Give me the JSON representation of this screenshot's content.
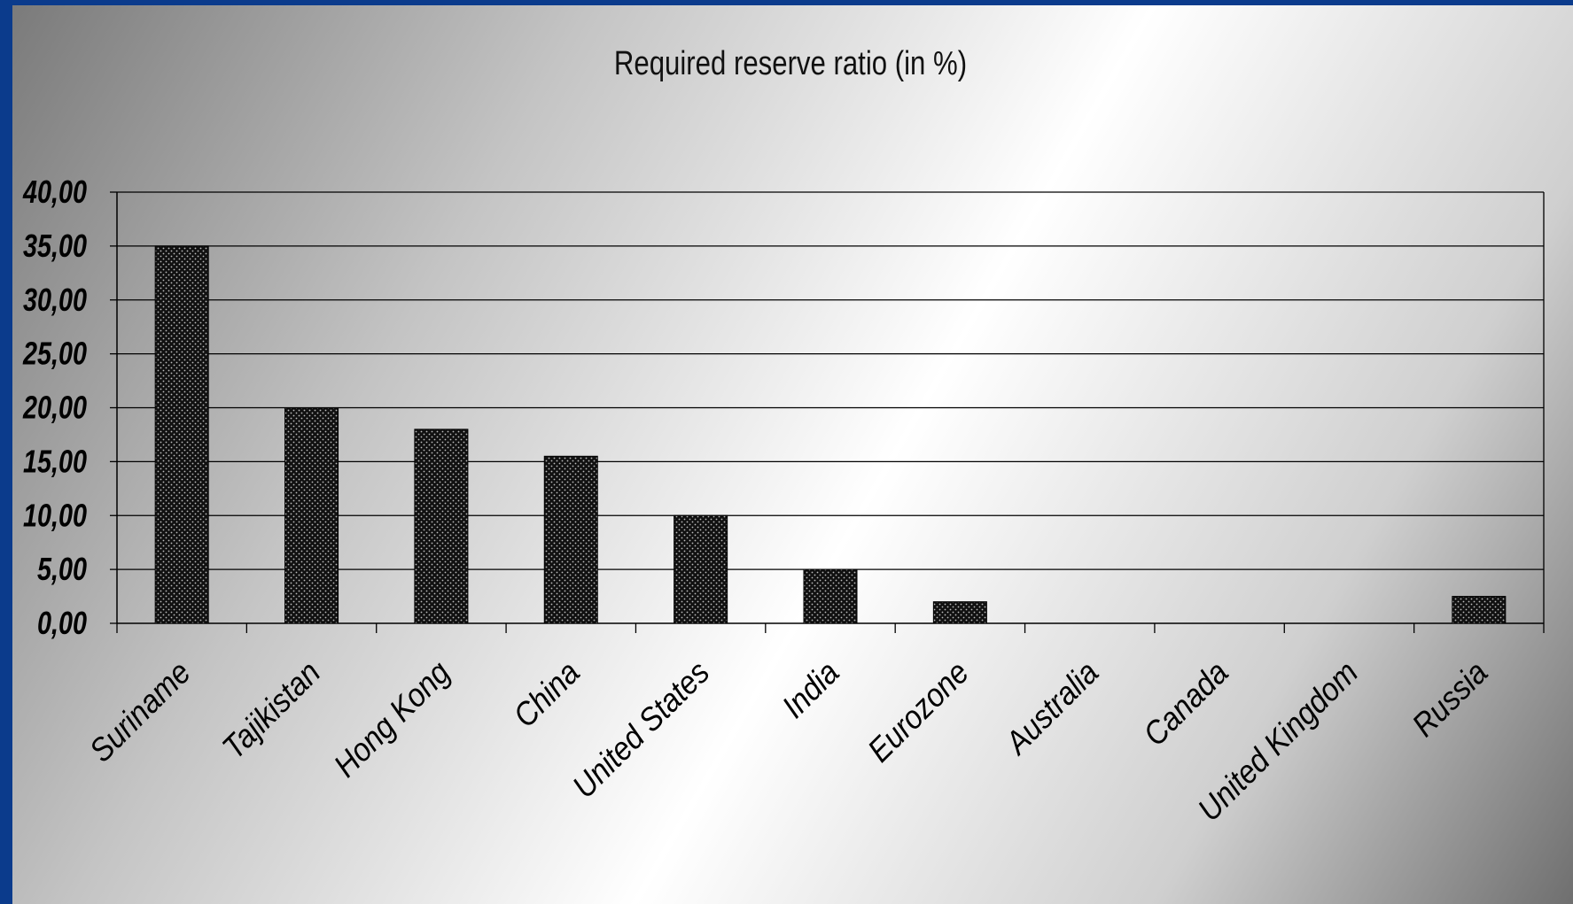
{
  "chart_data": {
    "type": "bar",
    "title": "Required reserve ratio (in %)",
    "categories": [
      "Suriname",
      "Tajikistan",
      "Hong Kong",
      "China",
      "United States",
      "India",
      "Eurozone",
      "Australia",
      "Canada",
      "United Kingdom",
      "Russia"
    ],
    "values": [
      35.0,
      20.0,
      18.0,
      15.5,
      10.0,
      5.0,
      2.0,
      0.0,
      0.0,
      0.0,
      2.5
    ],
    "ylim": [
      0,
      40
    ],
    "yticks": [
      "0,00",
      "5,00",
      "10,00",
      "15,00",
      "20,00",
      "25,00",
      "30,00",
      "35,00",
      "40,00"
    ],
    "xlabel": "",
    "ylabel": "",
    "grid": "horizontal",
    "legend": "none",
    "colors": {
      "bar": "#111111",
      "bar_dots": "#bdbdbd",
      "frame_border": "#0b3b8c",
      "grid": "#000000"
    }
  }
}
